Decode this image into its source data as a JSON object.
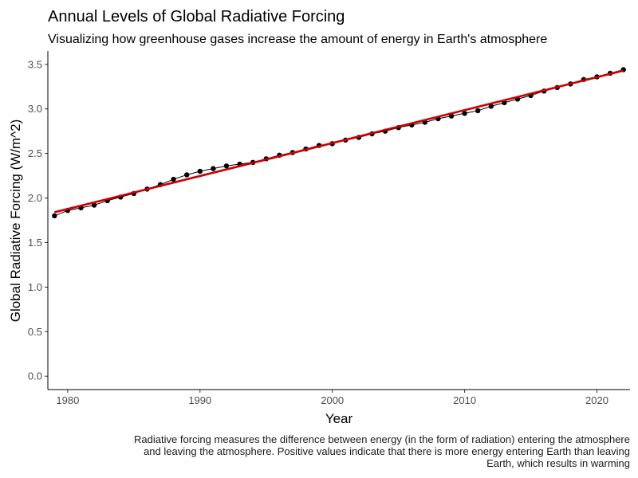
{
  "chart_data": {
    "type": "line",
    "title": "Annual Levels of Global Radiative Forcing",
    "subtitle": "Visualizing how greenhouse gases increase the amount of energy in Earth's atmosphere",
    "xlabel": "Year",
    "ylabel": "Global Radiative Forcing (W/m^2)",
    "caption_lines": [
      "Radiative forcing measures the difference between energy (in the form of radiation) entering the atmosphere",
      "and leaving the atmosphere. Positive values indicate that there is more energy entering Earth than leaving",
      "Earth, which results in warming"
    ],
    "xlim": [
      1978.5,
      2022.5
    ],
    "ylim": [
      -0.15,
      3.65
    ],
    "x_ticks": [
      1980,
      1990,
      2000,
      2010,
      2020
    ],
    "y_ticks": [
      0.0,
      0.5,
      1.0,
      1.5,
      2.0,
      2.5,
      3.0,
      3.5
    ],
    "grid": false,
    "x": [
      1979,
      1980,
      1981,
      1982,
      1983,
      1984,
      1985,
      1986,
      1987,
      1988,
      1989,
      1990,
      1991,
      1992,
      1993,
      1994,
      1995,
      1996,
      1997,
      1998,
      1999,
      2000,
      2001,
      2002,
      2003,
      2004,
      2005,
      2006,
      2007,
      2008,
      2009,
      2010,
      2011,
      2012,
      2013,
      2014,
      2015,
      2016,
      2017,
      2018,
      2019,
      2020,
      2021,
      2022
    ],
    "series": [
      {
        "color": "#000000",
        "style": "line-with-points",
        "values": [
          1.8,
          1.86,
          1.89,
          1.92,
          1.97,
          2.01,
          2.05,
          2.1,
          2.15,
          2.21,
          2.26,
          2.3,
          2.33,
          2.36,
          2.38,
          2.4,
          2.44,
          2.48,
          2.51,
          2.55,
          2.59,
          2.61,
          2.65,
          2.68,
          2.72,
          2.75,
          2.79,
          2.82,
          2.85,
          2.89,
          2.92,
          2.95,
          2.98,
          3.03,
          3.07,
          3.11,
          3.15,
          3.2,
          3.24,
          3.28,
          3.33,
          3.36,
          3.4,
          3.44
        ]
      },
      {
        "color": "#cc0000",
        "style": "trend-line",
        "values": [
          1.84,
          3.43
        ],
        "x": [
          1979,
          2022
        ]
      }
    ]
  }
}
